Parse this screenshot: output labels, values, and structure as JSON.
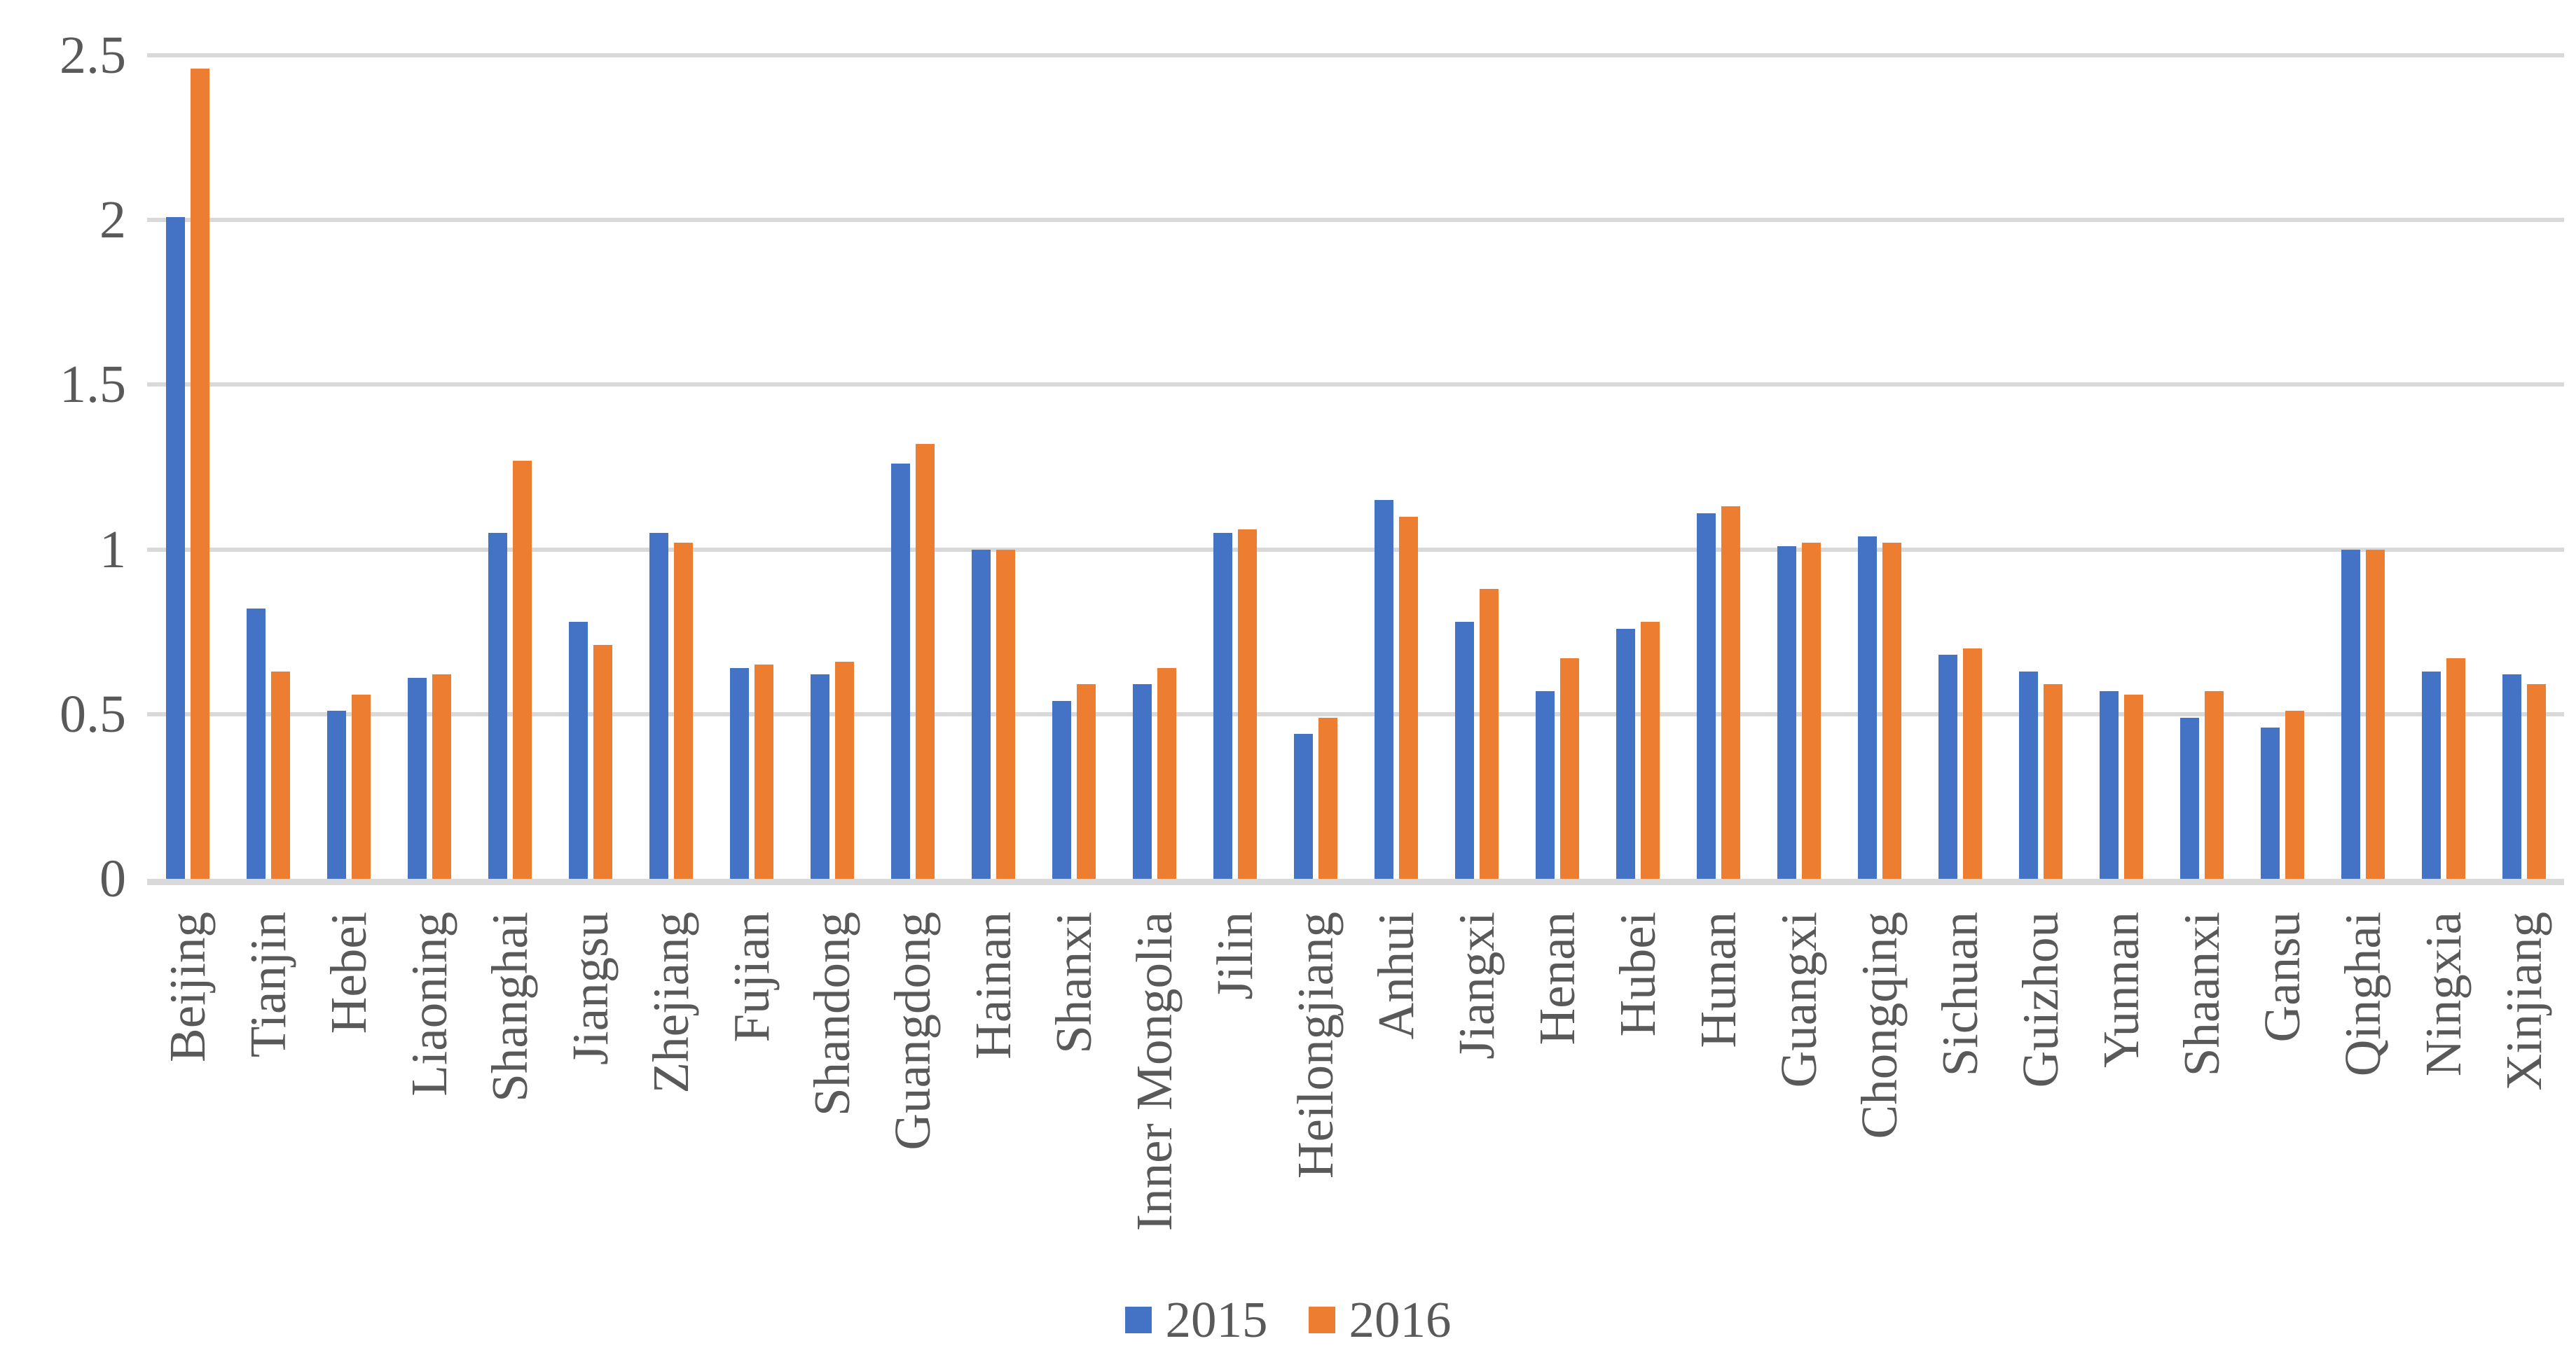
{
  "chart_data": {
    "type": "bar",
    "title": "",
    "xlabel": "",
    "ylabel": "",
    "categories": [
      "Beijing",
      "Tianjin",
      "Hebei",
      "Liaoning",
      "Shanghai",
      "Jiangsu",
      "Zhejiang",
      "Fujian",
      "Shandong",
      "Guangdong",
      "Hainan",
      "Shanxi",
      "Inner Mongolia",
      "Jilin",
      "Heilongjiang",
      "Anhui",
      "Jiangxi",
      "Henan",
      "Hubei",
      "Hunan",
      "Guangxi",
      "Chongqing",
      "Sichuan",
      "Guizhou",
      "Yunnan",
      "Shaanxi",
      "Gansu",
      "Qinghai",
      "Ningxia",
      "Xinjiang"
    ],
    "series": [
      {
        "name": "2015",
        "color": "#4472C4",
        "values": [
          2.01,
          0.82,
          0.51,
          0.61,
          1.05,
          0.78,
          1.05,
          0.64,
          0.62,
          1.26,
          1.0,
          0.54,
          0.59,
          1.05,
          0.44,
          1.15,
          0.78,
          0.57,
          0.76,
          1.11,
          1.01,
          1.04,
          0.68,
          0.63,
          0.57,
          0.49,
          0.46,
          1.0,
          0.63,
          0.62
        ]
      },
      {
        "name": "2016",
        "color": "#ED7D31",
        "values": [
          2.46,
          0.63,
          0.56,
          0.62,
          1.27,
          0.71,
          1.02,
          0.65,
          0.66,
          1.32,
          1.0,
          0.59,
          0.64,
          1.06,
          0.49,
          1.1,
          0.88,
          0.67,
          0.78,
          1.13,
          1.02,
          1.02,
          0.7,
          0.59,
          0.56,
          0.57,
          0.51,
          1.0,
          0.67,
          0.59
        ]
      }
    ],
    "y_ticks": [
      "0",
      "0.5",
      "1",
      "1.5",
      "2",
      "2.5"
    ],
    "ylim": [
      0,
      2.5
    ],
    "grid": "horizontal",
    "gridline_color": "#D9D9D9",
    "axis_label_color": "#595959",
    "legend_position": "bottom"
  }
}
